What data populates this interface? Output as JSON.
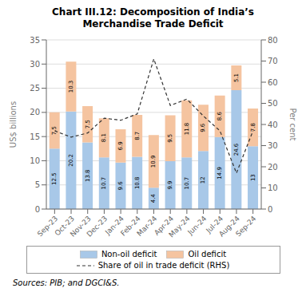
{
  "chart_data": {
    "type": "bar",
    "title": "Chart III.12: Decomposition of India’s\nMerchandise Trade Deficit",
    "categories": [
      "Sep-23",
      "Oct-23",
      "Nov-23",
      "Dec-23",
      "Jan-24",
      "Feb-24",
      "Mar-24",
      "Apr-24",
      "May-24",
      "Jun-24",
      "Jul-24",
      "Aug-24",
      "Sep-24"
    ],
    "series": [
      {
        "name": "Non-oil deficit",
        "type": "bar",
        "color": "#a8c8e8",
        "data_labels": true,
        "values": [
          12.5,
          20.2,
          13.8,
          10.7,
          9.6,
          10.8,
          4.4,
          9.9,
          10.7,
          12.0,
          14.9,
          24.6,
          13.0
        ]
      },
      {
        "name": "Oil deficit",
        "type": "bar",
        "color": "#f5c4a0",
        "data_labels": true,
        "values": [
          7.5,
          10.3,
          7.5,
          8.1,
          6.9,
          8.7,
          10.9,
          9.5,
          11.8,
          9.6,
          8.6,
          5.1,
          7.8
        ]
      },
      {
        "name": "Share of oil in trade deficit (RHS)",
        "type": "line",
        "axis": "y2",
        "color": "#333333",
        "line_style": "dashed",
        "values": [
          37,
          34,
          36,
          43,
          42,
          45,
          71,
          49,
          52,
          44,
          37,
          17,
          37
        ]
      }
    ],
    "stacked": true,
    "ylabel": "US$ billions",
    "y2label": "Per cent",
    "ylim": [
      0,
      35
    ],
    "yticks": [
      0,
      5,
      10,
      15,
      20,
      25,
      30,
      35
    ],
    "y2lim": [
      0,
      80
    ],
    "y2ticks": [
      0,
      10,
      20,
      30,
      40,
      50,
      60,
      70,
      80
    ],
    "grid": true,
    "legend": "bottom",
    "source": "Sources: PIB; and DGCI&S."
  }
}
